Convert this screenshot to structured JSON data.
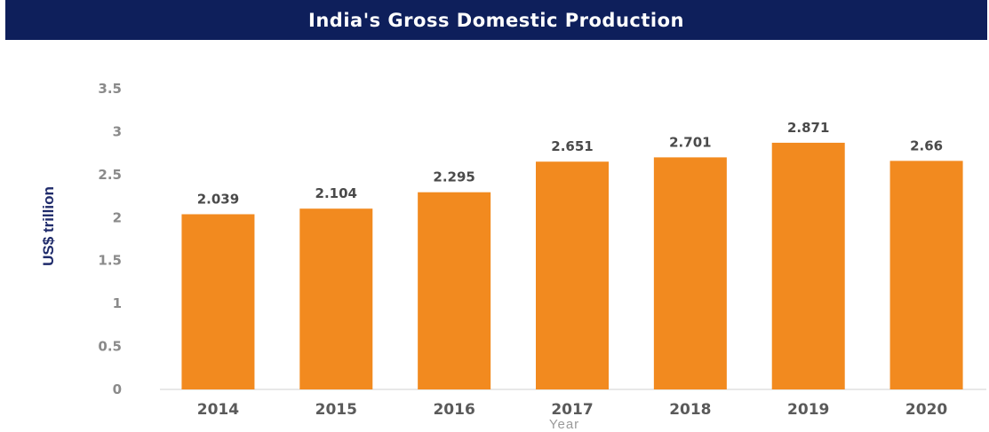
{
  "chart_data": {
    "type": "bar",
    "title": "India's Gross Domestic Production",
    "xlabel": "Year",
    "ylabel": "US$ trillion",
    "categories": [
      "2014",
      "2015",
      "2016",
      "2017",
      "2018",
      "2019",
      "2020"
    ],
    "values": [
      2.039,
      2.104,
      2.295,
      2.651,
      2.701,
      2.871,
      2.66
    ],
    "value_labels": [
      "2.039",
      "2.104",
      "2.295",
      "2.651",
      "2.701",
      "2.871",
      "2.66"
    ],
    "ylim": [
      0,
      3.5
    ],
    "yticks": [
      "0",
      "0.5",
      "1",
      "1.5",
      "2",
      "2.5",
      "3",
      "3.5"
    ],
    "grid": false,
    "colors": {
      "bar": "#f28a1f",
      "title_bg": "#0e1f5b",
      "title_text": "#ffffff",
      "ylabel": "#1e2a6a"
    }
  }
}
